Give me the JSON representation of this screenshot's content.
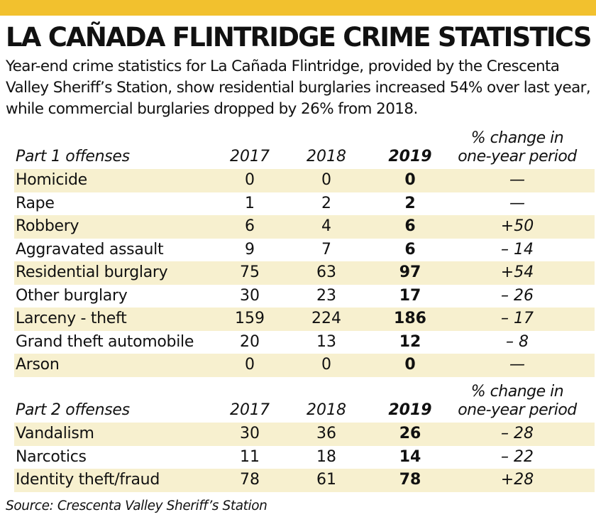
{
  "title": "LA CAÑADA FLINTRIDGE CRIME STATISTICS",
  "subtitle": "Year-end crime statistics for La Cañada Flintridge, provided by the Crescenta Valley Sheriff’s Station, show residential burglaries increased 54% over last year, while commercial burglaries dropped by 26% from 2018.",
  "source": "Source: Crescenta Valley Sheriff’s Station",
  "colors": {
    "accent_bar": "#f2c12e",
    "row_shade": "#f7f0cf"
  },
  "chart_data": {
    "type": "table",
    "sections": [
      {
        "header": {
          "label": "Part 1 offenses",
          "y2017": "2017",
          "y2018": "2018",
          "y2019": "2019",
          "change_line1": "% change in",
          "change_line2": "one-year period"
        },
        "rows": [
          {
            "label": "Homicide",
            "y2017": "0",
            "y2018": "0",
            "y2019": "0",
            "change": "—"
          },
          {
            "label": "Rape",
            "y2017": "1",
            "y2018": "2",
            "y2019": "2",
            "change": "—"
          },
          {
            "label": "Robbery",
            "y2017": "6",
            "y2018": "4",
            "y2019": "6",
            "change": "+50"
          },
          {
            "label": "Aggravated assault",
            "y2017": "9",
            "y2018": "7",
            "y2019": "6",
            "change": "– 14"
          },
          {
            "label": "Residential burglary",
            "y2017": "75",
            "y2018": "63",
            "y2019": "97",
            "change": "+54"
          },
          {
            "label": "Other burglary",
            "y2017": "30",
            "y2018": "23",
            "y2019": "17",
            "change": "– 26"
          },
          {
            "label": "Larceny - theft",
            "y2017": "159",
            "y2018": "224",
            "y2019": "186",
            "change": "– 17"
          },
          {
            "label": "Grand theft automobile",
            "y2017": "20",
            "y2018": "13",
            "y2019": "12",
            "change": "– 8"
          },
          {
            "label": "Arson",
            "y2017": "0",
            "y2018": "0",
            "y2019": "0",
            "change": "—"
          }
        ]
      },
      {
        "header": {
          "label": "Part 2 offenses",
          "y2017": "2017",
          "y2018": "2018",
          "y2019": "2019",
          "change_line1": "% change in",
          "change_line2": "one-year period"
        },
        "rows": [
          {
            "label": "Vandalism",
            "y2017": "30",
            "y2018": "36",
            "y2019": "26",
            "change": "– 28"
          },
          {
            "label": "Narcotics",
            "y2017": "11",
            "y2018": "18",
            "y2019": "14",
            "change": "– 22"
          },
          {
            "label": "Identity theft/fraud",
            "y2017": "78",
            "y2018": "61",
            "y2019": "78",
            "change": "+28"
          }
        ]
      }
    ]
  }
}
